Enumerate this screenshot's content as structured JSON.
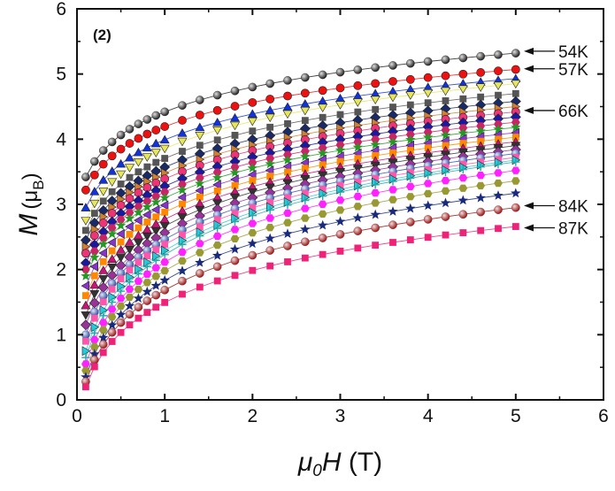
{
  "chart_data": {
    "type": "scatter",
    "panel_label": "(2)",
    "xlabel": {
      "mu": "μ",
      "sub0": "0",
      "H": "H",
      "unit": " (T)"
    },
    "ylabel": {
      "M": "M",
      "mu": "(μ",
      "subB": "B",
      "close": ")"
    },
    "xlim": [
      0,
      6
    ],
    "ylim": [
      0,
      6
    ],
    "xticks": [
      "0",
      "1",
      "2",
      "3",
      "4",
      "5",
      "6"
    ],
    "yticks": [
      "0",
      "1",
      "2",
      "3",
      "4",
      "5",
      "6"
    ],
    "x": [
      0.1,
      0.2,
      0.3,
      0.4,
      0.5,
      0.6,
      0.7,
      0.8,
      0.9,
      1.0,
      1.2,
      1.4,
      1.6,
      1.8,
      2.0,
      2.2,
      2.4,
      2.6,
      2.8,
      3.0,
      3.2,
      3.4,
      3.6,
      3.8,
      4.0,
      4.2,
      4.4,
      4.6,
      4.8,
      5.0
    ],
    "curves": [
      {
        "ends": [
          3.42,
          5.32
        ],
        "color": "#222222",
        "marker": "sphere"
      },
      {
        "ends": [
          3.22,
          5.07
        ],
        "color": "#ee1111",
        "marker": "circle"
      },
      {
        "ends": [
          2.95,
          4.93
        ],
        "color": "#1133dd",
        "marker": "triangle-up"
      },
      {
        "ends": [
          2.75,
          4.85
        ],
        "color": "#e6e65a",
        "marker": "triangle-down"
      },
      {
        "ends": [
          2.6,
          4.7
        ],
        "color": "#555555",
        "marker": "square"
      },
      {
        "ends": [
          2.45,
          4.58
        ],
        "color": "#1a2a66",
        "marker": "diamond"
      },
      {
        "ends": [
          2.35,
          4.5
        ],
        "color": "#d08030",
        "marker": "triangle-right"
      },
      {
        "ends": [
          2.25,
          4.42
        ],
        "color": "#ee3377",
        "marker": "circle"
      },
      {
        "ends": [
          2.1,
          4.34
        ],
        "color": "#1a1aa0",
        "marker": "diamond"
      },
      {
        "ends": [
          2.0,
          4.26
        ],
        "color": "#cc2266",
        "marker": "hexagon"
      },
      {
        "ends": [
          1.9,
          4.18
        ],
        "color": "#229922",
        "marker": "star"
      },
      {
        "ends": [
          1.75,
          4.1
        ],
        "color": "#8833cc",
        "marker": "triangle-left"
      },
      {
        "ends": [
          1.6,
          4.03
        ],
        "color": "#ff8800",
        "marker": "square"
      },
      {
        "ends": [
          1.45,
          3.96
        ],
        "color": "#cc1177",
        "marker": "triangle-up"
      },
      {
        "ends": [
          1.3,
          3.9
        ],
        "color": "#333333",
        "marker": "triangle-down"
      },
      {
        "ends": [
          1.15,
          3.84
        ],
        "color": "#993399",
        "marker": "diamond"
      },
      {
        "ends": [
          1.0,
          3.78
        ],
        "color": "#3355aa",
        "marker": "sphere"
      },
      {
        "ends": [
          0.9,
          3.72
        ],
        "color": "#ff55aa",
        "marker": "square"
      },
      {
        "ends": [
          0.75,
          3.68
        ],
        "color": "#22ccdd",
        "marker": "triangle-right"
      },
      {
        "ends": [
          0.65,
          3.65
        ],
        "color": "#22aaaa",
        "marker": "plus"
      },
      {
        "ends": [
          0.55,
          3.52
        ],
        "color": "#ff22ff",
        "marker": "hexagon"
      },
      {
        "ends": [
          0.45,
          3.36
        ],
        "color": "#999933",
        "marker": "hexagon"
      },
      {
        "ends": [
          0.35,
          3.17
        ],
        "color": "#1a2a7a",
        "marker": "star"
      },
      {
        "ends": [
          0.28,
          2.95
        ],
        "color": "#991a1a",
        "marker": "sphere"
      },
      {
        "ends": [
          0.2,
          2.66
        ],
        "color": "#ee2277",
        "marker": "square"
      }
    ],
    "annotations": [
      {
        "text": "54K",
        "y": 5.35
      },
      {
        "text": "57K",
        "y": 5.08
      },
      {
        "text": "66K",
        "y": 4.44
      },
      {
        "text": "84K",
        "y": 2.98
      },
      {
        "text": "87K",
        "y": 2.64
      }
    ]
  }
}
